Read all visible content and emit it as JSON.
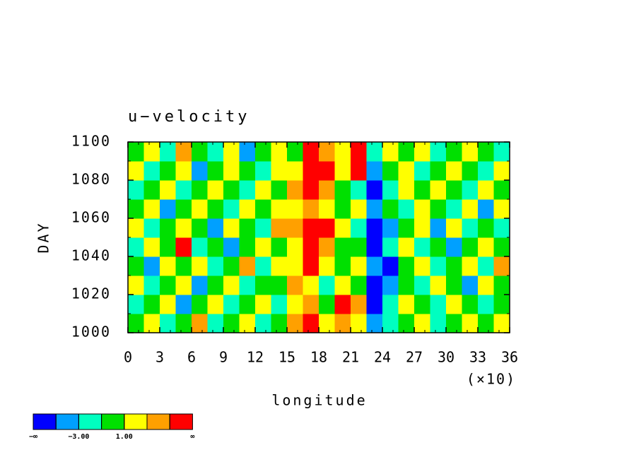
{
  "chart_data": {
    "type": "heatmap",
    "title": "u−velocity",
    "xlabel": "longitude",
    "ylabel": "DAY",
    "x_multiplier": "(×10)",
    "xlim": [
      0,
      36
    ],
    "xticks": [
      0,
      3,
      6,
      9,
      12,
      15,
      18,
      21,
      24,
      27,
      30,
      33,
      36
    ],
    "ylim": [
      1000,
      1100
    ],
    "yticks": [
      1000,
      1020,
      1040,
      1060,
      1080,
      1100
    ],
    "levels": [
      -5,
      -3,
      -1,
      1,
      3,
      5
    ],
    "colors": [
      "#0000ff",
      "#00a0ff",
      "#00ffc0",
      "#00e000",
      "#ffff00",
      "#ffa000",
      "#ff0000"
    ],
    "colorbar_ticks": [
      {
        "value": -3,
        "label": "−3.00"
      },
      {
        "value": 1,
        "label": "1.00"
      }
    ],
    "colorbar_end_labels": [
      "−∞",
      "∞"
    ],
    "z": [
      [
        0,
        2,
        -2,
        0,
        4,
        -2,
        0,
        2,
        -2,
        0,
        4,
        6,
        2,
        4,
        2,
        -4,
        -2,
        0,
        2,
        -2,
        0,
        2,
        0,
        2
      ],
      [
        -2,
        0,
        2,
        -4,
        0,
        2,
        -2,
        0,
        2,
        -2,
        2,
        4,
        0,
        6,
        4,
        -6,
        -2,
        2,
        0,
        -2,
        2,
        0,
        -2,
        0
      ],
      [
        2,
        -2,
        0,
        2,
        -4,
        0,
        2,
        -2,
        0,
        0,
        4,
        2,
        -2,
        2,
        0,
        -6,
        -4,
        0,
        -2,
        2,
        0,
        -4,
        2,
        0
      ],
      [
        0,
        -4,
        2,
        0,
        2,
        -2,
        0,
        4,
        -2,
        2,
        2,
        6,
        2,
        0,
        2,
        -4,
        -6,
        0,
        2,
        -2,
        0,
        2,
        -2,
        4
      ],
      [
        -2,
        2,
        0,
        6,
        -2,
        0,
        -4,
        0,
        2,
        0,
        2,
        6,
        4,
        0,
        0,
        -6,
        -2,
        2,
        -2,
        0,
        -4,
        0,
        2,
        0
      ],
      [
        2,
        -2,
        0,
        2,
        0,
        -4,
        2,
        0,
        -2,
        4,
        4,
        6,
        6,
        2,
        -2,
        -6,
        -4,
        0,
        2,
        -4,
        2,
        -2,
        0,
        -2
      ],
      [
        0,
        2,
        -4,
        0,
        2,
        0,
        -2,
        2,
        0,
        2,
        2,
        4,
        2,
        0,
        2,
        -4,
        0,
        -2,
        2,
        0,
        -2,
        2,
        -4,
        2
      ],
      [
        -2,
        0,
        2,
        -2,
        0,
        2,
        0,
        -2,
        2,
        0,
        4,
        6,
        4,
        0,
        -2,
        -6,
        -2,
        2,
        0,
        2,
        0,
        -2,
        2,
        0
      ],
      [
        2,
        -2,
        0,
        2,
        -4,
        0,
        2,
        0,
        -2,
        2,
        2,
        6,
        6,
        2,
        6,
        -4,
        0,
        2,
        -2,
        0,
        2,
        0,
        -2,
        2
      ],
      [
        0,
        2,
        -2,
        4,
        0,
        -2,
        2,
        -4,
        0,
        2,
        0,
        6,
        4,
        2,
        6,
        -2,
        2,
        0,
        2,
        -2,
        0,
        2,
        0,
        -2
      ]
    ]
  }
}
